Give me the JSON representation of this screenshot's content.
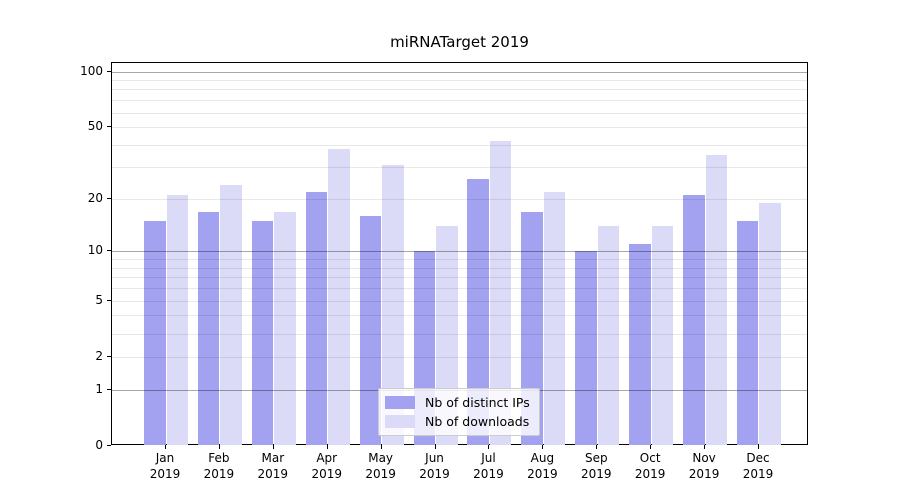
{
  "title": "miRNATarget 2019",
  "legend": {
    "items": [
      {
        "label": "Nb of distinct IPs",
        "color": "#a2a2f0"
      },
      {
        "label": "Nb of downloads",
        "color": "#dbdbf8"
      }
    ]
  },
  "chart_data": {
    "type": "bar",
    "title": "miRNATarget 2019",
    "categories": [
      "Jan 2019",
      "Feb 2019",
      "Mar 2019",
      "Apr 2019",
      "May 2019",
      "Jun 2019",
      "Jul 2019",
      "Aug 2019",
      "Sep 2019",
      "Oct 2019",
      "Nov 2019",
      "Dec 2019"
    ],
    "month_labels": [
      "Jan",
      "Feb",
      "Mar",
      "Apr",
      "May",
      "Jun",
      "Jul",
      "Aug",
      "Sep",
      "Oct",
      "Nov",
      "Dec"
    ],
    "year_label": "2019",
    "series": [
      {
        "name": "Nb of distinct IPs",
        "color": "#a2a2f0",
        "values": [
          15,
          17,
          15,
          22,
          16,
          10,
          26,
          17,
          10,
          11,
          21,
          15
        ]
      },
      {
        "name": "Nb of downloads",
        "color": "#dbdbf8",
        "values": [
          21,
          24,
          17,
          38,
          31,
          14,
          42,
          22,
          14,
          14,
          35,
          19
        ]
      }
    ],
    "xlabel": "",
    "ylabel": "",
    "yscale": "log1p",
    "ylim": [
      0,
      111
    ],
    "yticks": [
      0,
      1,
      2,
      5,
      10,
      20,
      50,
      100
    ],
    "grid": {
      "major_lines": [
        1,
        10,
        100
      ],
      "minor_lines": [
        2,
        3,
        4,
        5,
        6,
        7,
        8,
        9,
        20,
        30,
        40,
        50,
        60,
        70,
        80,
        90
      ]
    },
    "legend_position": "lower-center",
    "grid_on": true
  }
}
